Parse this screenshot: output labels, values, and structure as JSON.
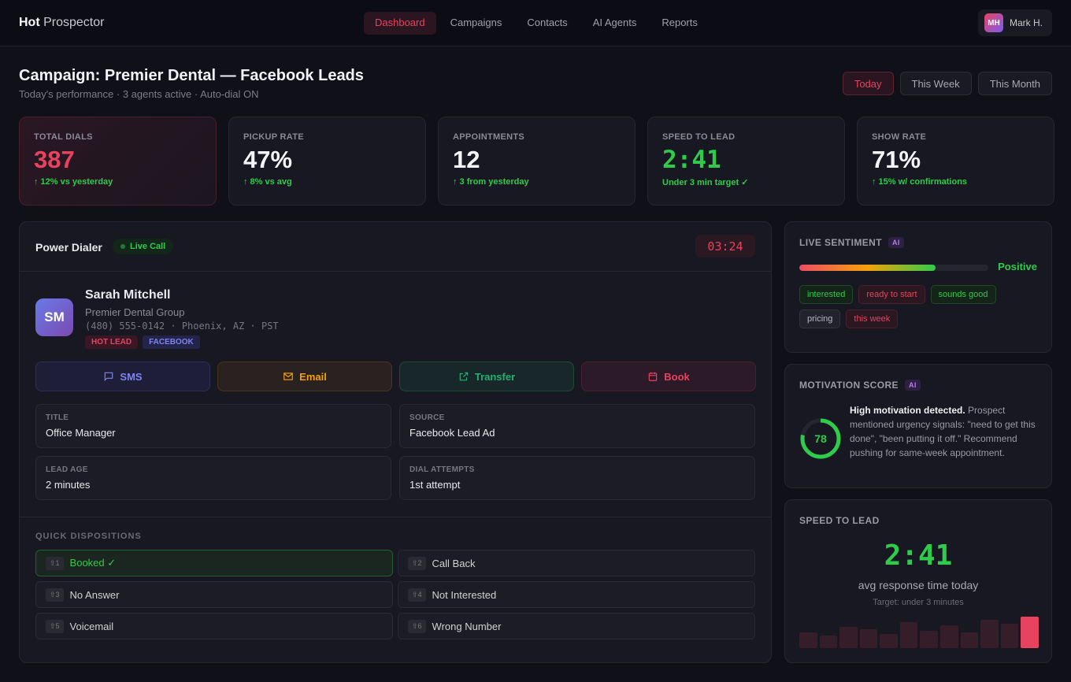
{
  "app": {
    "logo_bold": "Hot",
    "logo_rest": "Prospector"
  },
  "nav": [
    {
      "label": "Dashboard",
      "active": true
    },
    {
      "label": "Campaigns"
    },
    {
      "label": "Contacts"
    },
    {
      "label": "AI Agents"
    },
    {
      "label": "Reports"
    }
  ],
  "user": {
    "initials": "MH",
    "name": "Mark H."
  },
  "page": {
    "title": "Campaign: Premier Dental — Facebook Leads",
    "subtitle": "Today's performance · 3 agents active · Auto-dial ON"
  },
  "ranges": [
    {
      "label": "Today",
      "active": true
    },
    {
      "label": "This Week"
    },
    {
      "label": "This Month"
    }
  ],
  "stats": [
    {
      "label": "TOTAL DIALS",
      "value": "387",
      "delta": "↑ 12% vs yesterday"
    },
    {
      "label": "PICKUP RATE",
      "value": "47%",
      "delta": "↑ 8% vs avg"
    },
    {
      "label": "APPOINTMENTS",
      "value": "12",
      "delta": "↑ 3 from yesterday"
    },
    {
      "label": "SPEED TO LEAD",
      "value": "2:41",
      "delta": "Under 3 min target ✓"
    },
    {
      "label": "SHOW RATE",
      "value": "71%",
      "delta": "↑ 15% w/ confirmations"
    }
  ],
  "dialer": {
    "title": "Power Dialer",
    "status": "Live Call",
    "timer": "03:24",
    "contact": {
      "initials": "SM",
      "name": "Sarah Mitchell",
      "company": "Premier Dental Group",
      "phone_line": "(480) 555-0142 · Phoenix, AZ · PST",
      "tags": [
        "HOT LEAD",
        "FACEBOOK"
      ]
    },
    "actions": [
      {
        "label": "SMS",
        "icon": "message-icon"
      },
      {
        "label": "Email",
        "icon": "mail-icon"
      },
      {
        "label": "Transfer",
        "icon": "external-link-icon"
      },
      {
        "label": "Book",
        "icon": "calendar-icon"
      }
    ],
    "fields": [
      {
        "key": "TITLE",
        "value": "Office Manager"
      },
      {
        "key": "SOURCE",
        "value": "Facebook Lead Ad"
      },
      {
        "key": "LEAD AGE",
        "value": "2 minutes"
      },
      {
        "key": "DIAL ATTEMPTS",
        "value": "1st attempt"
      }
    ],
    "dispositions_title": "QUICK DISPOSITIONS",
    "dispositions": [
      {
        "key": "⇧1",
        "label": "Booked ✓",
        "selected": true
      },
      {
        "key": "⇧2",
        "label": "Call Back"
      },
      {
        "key": "⇧3",
        "label": "No Answer"
      },
      {
        "key": "⇧4",
        "label": "Not Interested"
      },
      {
        "key": "⇧5",
        "label": "Voicemail"
      },
      {
        "key": "⇧6",
        "label": "Wrong Number"
      }
    ]
  },
  "sentiment": {
    "title": "LIVE SENTIMENT",
    "badge": "AI",
    "level_percent": 72,
    "label": "Positive",
    "chips": [
      {
        "text": "interested",
        "tone": "green"
      },
      {
        "text": "ready to start",
        "tone": "red"
      },
      {
        "text": "sounds good",
        "tone": "green"
      },
      {
        "text": "pricing",
        "tone": "gray"
      },
      {
        "text": "this week",
        "tone": "red"
      }
    ]
  },
  "motivation": {
    "title": "MOTIVATION SCORE",
    "badge": "AI",
    "score": "78",
    "score_value": 78,
    "headline": "High motivation detected.",
    "body": " Prospect mentioned urgency signals: \"need to get this done\", \"been putting it off.\" Recommend pushing for same-week appointment."
  },
  "speed": {
    "title": "SPEED TO LEAD",
    "value": "2:41",
    "caption": "avg response time today",
    "target": "Target: under 3 minutes",
    "bars": [
      18,
      14,
      24,
      22,
      16,
      30,
      20,
      26,
      18,
      32,
      28,
      36
    ]
  },
  "colors": {
    "accent": "#e8435e",
    "positive": "#2ecc4a",
    "bg": "#101019"
  }
}
